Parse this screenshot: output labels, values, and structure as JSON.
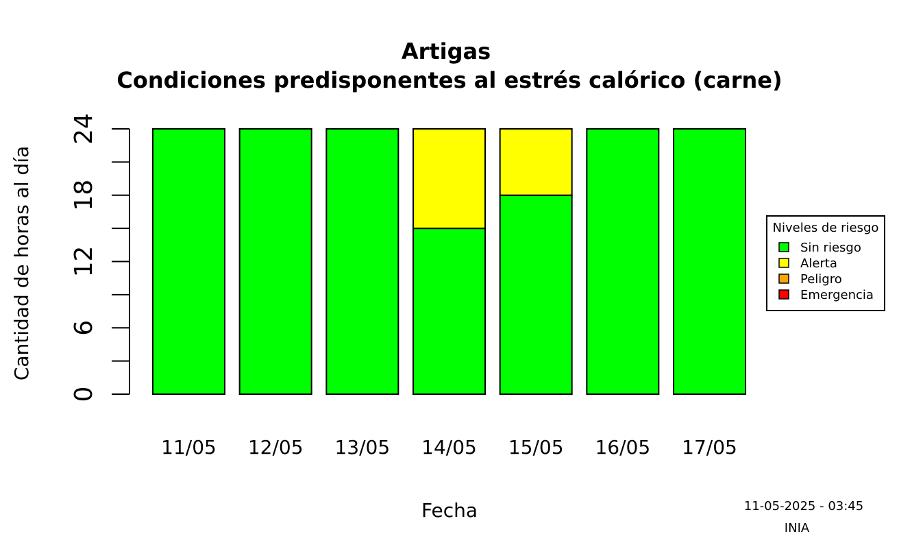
{
  "chart_data": {
    "type": "bar",
    "stacked": true,
    "title": "Artigas",
    "subtitle": "Condiciones predisponentes al estrés calórico (carne)",
    "xlabel": "Fecha",
    "ylabel": "Cantidad de horas al día",
    "categories": [
      "11/05",
      "12/05",
      "13/05",
      "14/05",
      "15/05",
      "16/05",
      "17/05"
    ],
    "ylim": [
      0,
      24
    ],
    "yticks": [
      0,
      6,
      12,
      18,
      24
    ],
    "yticks_minor": [
      3,
      9,
      15,
      21
    ],
    "series": [
      {
        "name": "Sin riesgo",
        "color": "#00ff00",
        "values": [
          24,
          24,
          24,
          15,
          18,
          24,
          24
        ]
      },
      {
        "name": "Alerta",
        "color": "#ffff00",
        "values": [
          0,
          0,
          0,
          9,
          6,
          0,
          0
        ]
      },
      {
        "name": "Peligro",
        "color": "#ffa500",
        "values": [
          0,
          0,
          0,
          0,
          0,
          0,
          0
        ]
      },
      {
        "name": "Emergencia",
        "color": "#ff0000",
        "values": [
          0,
          0,
          0,
          0,
          0,
          0,
          0
        ]
      }
    ],
    "legend": {
      "title": "Niveles de riesgo",
      "placement": "right"
    },
    "grid": false
  },
  "footer": {
    "timestamp": "11-05-2025 - 03:45",
    "source": "INIA"
  }
}
